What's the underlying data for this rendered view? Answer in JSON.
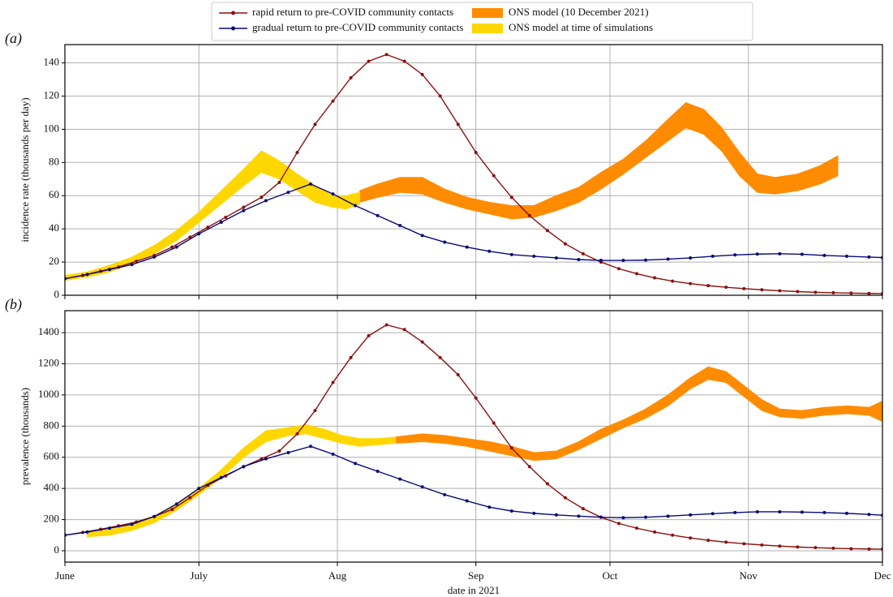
{
  "chart_data": [
    {
      "type": "line",
      "panel_label": "(a)",
      "ylabel": "incidence rate (thousands per day)",
      "xlim": [
        0,
        183
      ],
      "ylim": [
        0,
        151
      ],
      "yticks": [
        0,
        20,
        40,
        60,
        80,
        100,
        120,
        140
      ],
      "xticks": [
        0,
        30,
        61,
        92,
        122,
        153,
        183
      ],
      "show_xtick_labels": false,
      "grid": true,
      "legend": "above",
      "series": [
        {
          "name": "rapid return to pre-COVID community contacts",
          "type": "line",
          "color": "#8b1010",
          "x": [
            0,
            4,
            8,
            12,
            16,
            20,
            24,
            28,
            32,
            36,
            40,
            44,
            48,
            52,
            56,
            60,
            64,
            68,
            72,
            76,
            80,
            84,
            88,
            92,
            96,
            100,
            104,
            108,
            112,
            116,
            120,
            124,
            128,
            132,
            136,
            140,
            144,
            148,
            152,
            156,
            160,
            164,
            168,
            172,
            176,
            180,
            183
          ],
          "values": [
            10,
            12,
            14.5,
            17,
            20.5,
            24,
            29,
            35,
            41,
            47,
            53,
            59,
            68,
            86,
            103,
            117,
            131,
            141,
            145,
            141,
            133,
            120,
            103,
            86,
            72,
            59,
            48,
            39,
            31,
            25,
            20,
            16,
            13,
            10.5,
            8.5,
            7,
            5.8,
            4.8,
            4,
            3.3,
            2.7,
            2.2,
            1.8,
            1.5,
            1.3,
            1.1,
            1
          ]
        },
        {
          "name": "gradual return to pre-COVID community contacts",
          "type": "line",
          "color": "#0a0a7a",
          "x": [
            0,
            5,
            10,
            15,
            20,
            25,
            30,
            35,
            40,
            45,
            50,
            55,
            60,
            65,
            70,
            75,
            80,
            85,
            90,
            95,
            100,
            105,
            110,
            115,
            120,
            125,
            130,
            135,
            140,
            145,
            150,
            155,
            160,
            165,
            170,
            175,
            180,
            183
          ],
          "values": [
            10,
            12.5,
            15.5,
            18.5,
            23,
            29,
            37,
            44,
            51,
            57,
            62,
            67,
            61,
            54,
            48,
            42,
            36,
            32,
            29,
            26.5,
            24.5,
            23.5,
            22.5,
            21.5,
            21,
            21,
            21.2,
            21.8,
            22.5,
            23.5,
            24.3,
            24.8,
            25,
            24.7,
            24,
            23.5,
            23,
            22.7
          ]
        },
        {
          "name": "ONS model (10 December 2021)",
          "type": "band",
          "color": "#ff8c00",
          "x": [
            66,
            70,
            75,
            80,
            85,
            90,
            95,
            100,
            105,
            110,
            115,
            120,
            125,
            130,
            135,
            139,
            143,
            147,
            151,
            155,
            159,
            164,
            169,
            173
          ],
          "low": [
            56,
            59,
            62,
            61,
            56,
            52,
            49,
            46,
            47,
            51,
            56,
            64,
            73,
            83,
            93,
            101,
            97,
            87,
            72,
            62,
            61,
            63,
            67,
            72
          ],
          "high": [
            63,
            67,
            71,
            71,
            64,
            59,
            56,
            54,
            54,
            60,
            65,
            74,
            82,
            93,
            106,
            116,
            112,
            101,
            86,
            73,
            71,
            73,
            78,
            84
          ]
        },
        {
          "name": "ONS model at time of simulations",
          "type": "band",
          "color": "#ffd700",
          "x": [
            0,
            5,
            10,
            15,
            20,
            25,
            30,
            35,
            40,
            44,
            48,
            52,
            56,
            60,
            63,
            66
          ],
          "low": [
            9,
            11,
            14,
            19,
            25,
            33,
            44,
            55,
            66,
            74,
            70,
            63,
            56,
            53,
            52,
            55
          ],
          "high": [
            12,
            14,
            18,
            23,
            30,
            39,
            50,
            63,
            76,
            87,
            81,
            73,
            66,
            60,
            60,
            62
          ]
        }
      ]
    },
    {
      "type": "line",
      "panel_label": "(b)",
      "ylabel": "prevalence (thousands)",
      "xlabel": "date in 2021",
      "xlim": [
        0,
        183
      ],
      "ylim": [
        -73,
        1541
      ],
      "yticks": [
        0,
        200,
        400,
        600,
        800,
        1000,
        1200,
        1400
      ],
      "xticks": [
        {
          "value": 0,
          "label": "June"
        },
        {
          "value": 30,
          "label": "July"
        },
        {
          "value": 61,
          "label": "Aug"
        },
        {
          "value": 92,
          "label": "Sep"
        },
        {
          "value": 122,
          "label": "Oct"
        },
        {
          "value": 153,
          "label": "Nov"
        },
        {
          "value": 183,
          "label": "Dec"
        }
      ],
      "show_xtick_labels": true,
      "grid": true,
      "series": [
        {
          "type": "line",
          "color": "#8b1010",
          "x": [
            0,
            4,
            8,
            12,
            16,
            20,
            24,
            28,
            32,
            36,
            40,
            44,
            48,
            52,
            56,
            60,
            64,
            68,
            72,
            76,
            80,
            84,
            88,
            92,
            96,
            100,
            104,
            108,
            112,
            116,
            120,
            124,
            128,
            132,
            136,
            140,
            144,
            148,
            152,
            156,
            160,
            164,
            168,
            172,
            176,
            180,
            183
          ],
          "values": [
            100,
            118,
            138,
            160,
            185,
            220,
            265,
            340,
            420,
            480,
            540,
            590,
            640,
            750,
            900,
            1080,
            1240,
            1380,
            1450,
            1420,
            1340,
            1240,
            1130,
            980,
            820,
            660,
            540,
            430,
            340,
            270,
            215,
            175,
            145,
            120,
            100,
            82,
            67,
            55,
            45,
            37,
            30,
            24,
            20,
            16,
            13,
            11,
            10
          ]
        },
        {
          "type": "line",
          "color": "#0a0a7a",
          "x": [
            0,
            5,
            10,
            15,
            20,
            25,
            30,
            35,
            40,
            45,
            50,
            55,
            60,
            65,
            70,
            75,
            80,
            85,
            90,
            95,
            100,
            105,
            110,
            115,
            120,
            125,
            130,
            135,
            140,
            145,
            150,
            155,
            160,
            165,
            170,
            175,
            180,
            183
          ],
          "values": [
            100,
            120,
            145,
            170,
            220,
            300,
            400,
            470,
            540,
            590,
            630,
            670,
            620,
            560,
            510,
            460,
            410,
            360,
            320,
            280,
            255,
            240,
            230,
            222,
            215,
            212,
            215,
            222,
            230,
            238,
            245,
            250,
            250,
            248,
            245,
            240,
            233,
            228
          ]
        },
        {
          "type": "band",
          "color": "#ff8c00",
          "x": [
            74,
            80,
            85,
            90,
            95,
            100,
            105,
            110,
            115,
            120,
            125,
            130,
            135,
            140,
            144,
            148,
            152,
            156,
            160,
            165,
            170,
            175,
            180,
            183
          ],
          "low": [
            690,
            700,
            690,
            670,
            640,
            610,
            580,
            590,
            650,
            720,
            790,
            850,
            930,
            1040,
            1100,
            1080,
            990,
            900,
            860,
            850,
            870,
            880,
            870,
            830
          ],
          "high": [
            730,
            750,
            740,
            720,
            700,
            670,
            630,
            640,
            700,
            780,
            840,
            910,
            1000,
            1110,
            1180,
            1150,
            1060,
            970,
            910,
            900,
            920,
            930,
            920,
            960
          ]
        },
        {
          "type": "band",
          "color": "#ffd700",
          "x": [
            5,
            10,
            15,
            20,
            25,
            30,
            35,
            40,
            45,
            50,
            54,
            58,
            62,
            66,
            70,
            74
          ],
          "low": [
            90,
            100,
            130,
            180,
            260,
            360,
            470,
            600,
            700,
            740,
            750,
            720,
            690,
            670,
            680,
            690
          ],
          "high": [
            120,
            135,
            165,
            220,
            300,
            400,
            520,
            660,
            770,
            790,
            810,
            780,
            740,
            720,
            720,
            730
          ]
        }
      ]
    }
  ]
}
